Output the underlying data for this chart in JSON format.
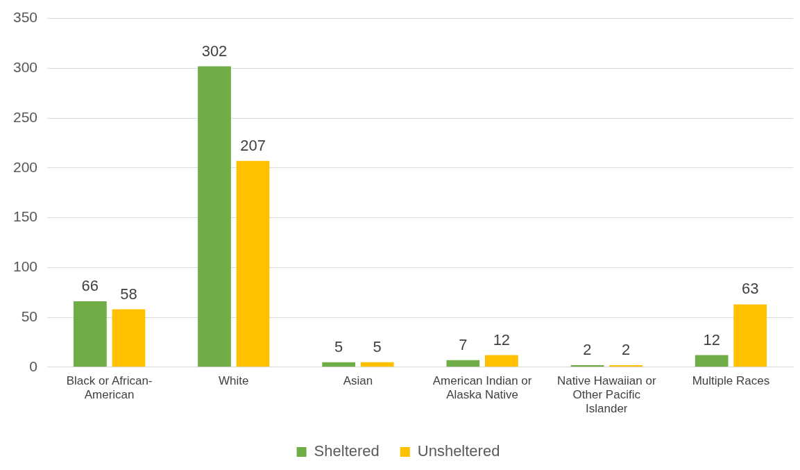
{
  "chart_data": {
    "type": "bar",
    "categories": [
      "Black or African-American",
      "White",
      "Asian",
      "American Indian or Alaska Native",
      "Native Hawaiian or Other Pacific Islander",
      "Multiple Races"
    ],
    "series": [
      {
        "name": "Sheltered",
        "color": "#70ad47",
        "values": [
          66,
          302,
          5,
          7,
          2,
          12
        ]
      },
      {
        "name": "Unsheltered",
        "color": "#ffc000",
        "values": [
          58,
          207,
          5,
          12,
          2,
          63
        ]
      }
    ],
    "ylim": [
      0,
      350
    ],
    "yticks": [
      0,
      50,
      100,
      150,
      200,
      250,
      300,
      350
    ],
    "grid": "y",
    "legend": "bottom",
    "data_labels": true
  }
}
